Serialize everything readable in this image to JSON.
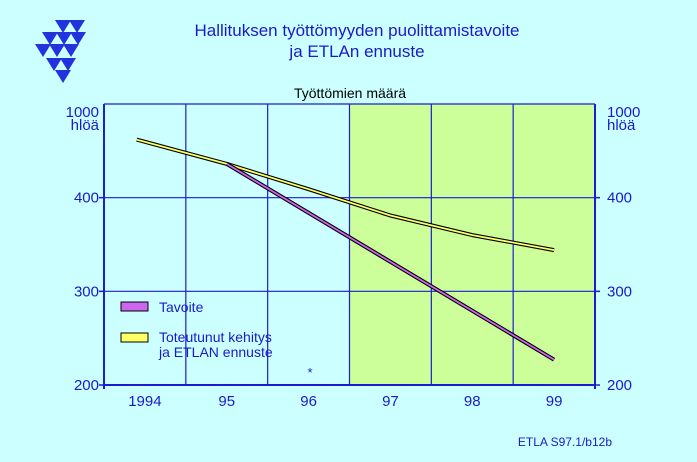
{
  "header": {
    "title_line1": "Hallituksen työttömyyden puolittamistavoite",
    "title_line2": "ja ETLAn ennuste",
    "logo_icon": "etla-triangles-logo"
  },
  "footer": {
    "source": "ETLA S97.1/b12b"
  },
  "colors": {
    "background": "#ccffff",
    "plot_left": "#ccffff",
    "plot_right": "#ccff99",
    "axis": "#1c1cd4",
    "text_blue": "#1a1acc",
    "series_tavoite": "#cc66ee",
    "series_toteutunut": "#ffff66",
    "line_outline": "#000000"
  },
  "chart_data": {
    "type": "line",
    "title": "Työttömien määrä",
    "y_unit": "1000\nhlöä",
    "y_unit_line1": "1000",
    "y_unit_line2": "hlöä",
    "x_categories": [
      "1994",
      "95",
      "96",
      "97",
      "98",
      "99"
    ],
    "y_ticks": [
      200,
      300,
      400
    ],
    "ylim": [
      200,
      500
    ],
    "forecast_shading_from": 1996.5,
    "note": "*",
    "series": [
      {
        "name": "Tavoite",
        "x": [
          1995.0,
          1999.0
        ],
        "y": [
          436,
          227
        ]
      },
      {
        "name": "Toteutunut kehitys\nja ETLAN ennuste",
        "name_line1": "Toteutunut kehitys",
        "name_line2": "ja ETLAN ennuste",
        "x": [
          1993.9,
          1995.0,
          1996.0,
          1997.0,
          1998.0,
          1999.0
        ],
        "y": [
          462,
          436,
          409,
          381,
          360,
          344
        ]
      }
    ],
    "grid": true,
    "legend": "bottom-left"
  }
}
